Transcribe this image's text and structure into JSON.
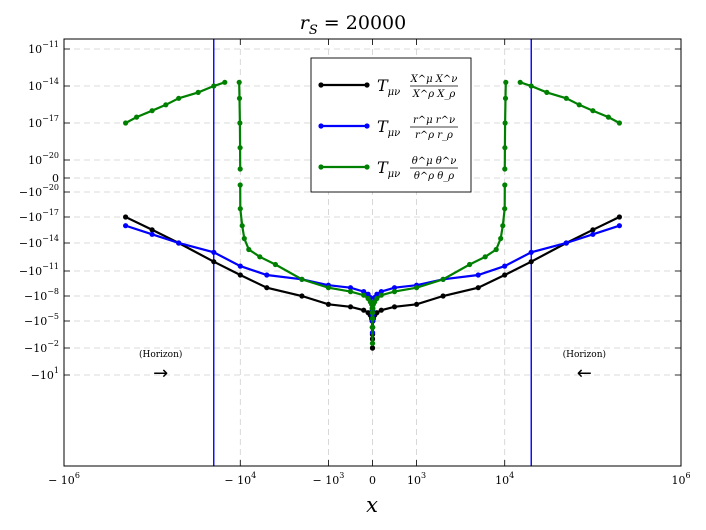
{
  "chart_data": {
    "type": "line",
    "title": "r_S = 20000",
    "title_parts": {
      "main": "r",
      "sub": "S",
      "rest": " = 20000"
    },
    "xlabel": "x",
    "ylabel": "",
    "x_scale": "symlog",
    "y_scale": "symlog",
    "xlim": [
      -1000000,
      1000000
    ],
    "x_ticks": [
      {
        "value": -1000000,
        "base": "− 10",
        "exp": "6"
      },
      {
        "value": -10000,
        "base": "− 10",
        "exp": "4"
      },
      {
        "value": -1000,
        "base": "− 10",
        "exp": "3"
      },
      {
        "value": 0,
        "base": "0",
        "exp": ""
      },
      {
        "value": 1000,
        "base": "10",
        "exp": "3"
      },
      {
        "value": 10000,
        "base": "10",
        "exp": "4"
      },
      {
        "value": 1000000,
        "base": "10",
        "exp": "6"
      }
    ],
    "y_ticks": [
      {
        "value": 1e-11,
        "base": "10",
        "exp": "−11"
      },
      {
        "value": 1e-14,
        "base": "10",
        "exp": "−14"
      },
      {
        "value": 1e-17,
        "base": "10",
        "exp": "−17"
      },
      {
        "value": 1e-20,
        "base": "10",
        "exp": "−20"
      },
      {
        "value": 0,
        "base": "0",
        "exp": ""
      },
      {
        "value": -1e-20,
        "base": "−10",
        "exp": "−20"
      },
      {
        "value": -1e-17,
        "base": "−10",
        "exp": "−17"
      },
      {
        "value": -1e-14,
        "base": "−10",
        "exp": "−14"
      },
      {
        "value": -1e-11,
        "base": "−10",
        "exp": "−11"
      },
      {
        "value": -1e-08,
        "base": "−10",
        "exp": "−8"
      },
      {
        "value": -1e-05,
        "base": "−10",
        "exp": "−5"
      },
      {
        "value": -0.01,
        "base": "−10",
        "exp": "−2"
      },
      {
        "value": -10,
        "base": "−10",
        "exp": "1"
      }
    ],
    "grid": true,
    "legend_position": "top-center",
    "vertical_lines": [
      {
        "x": -20000,
        "color": "#0000ff"
      },
      {
        "x": 20000,
        "color": "#0000ff"
      }
    ],
    "annotations": [
      {
        "text": "(Horizon)",
        "x": -80000,
        "y": -0.1,
        "arrow": "→"
      },
      {
        "text": "(Horizon)",
        "x": 80000,
        "y": -0.1,
        "arrow": "←"
      }
    ],
    "series": [
      {
        "color": "#000000",
        "legend_main": "T",
        "legend_sub": "μν",
        "legend_num": "X^μ X^ν",
        "legend_den": "X^ρ X_ρ",
        "segments": [
          {
            "x": [
              -200000,
              -100000,
              -50000,
              -20000,
              -10000,
              -5000,
              -2000,
              -1000,
              -500,
              -200,
              -100,
              -50,
              -20,
              -10,
              -5,
              -2,
              -1,
              0
            ],
            "y": [
              -1e-17,
              -3e-16,
              -1e-14,
              -1e-12,
              -3e-11,
              -1e-09,
              -1e-08,
              -1e-07,
              -2e-07,
              -5e-07,
              -1e-06,
              -2e-06,
              -5e-06,
              -1e-05,
              -5e-05,
              -0.0003,
              -0.001,
              -0.01
            ]
          },
          {
            "x": [
              0,
              1,
              2,
              5,
              10,
              20,
              50,
              100,
              200,
              500,
              1000,
              2000,
              5000,
              10000,
              20000,
              50000,
              100000,
              200000
            ],
            "y": [
              -0.01,
              -0.001,
              -0.0003,
              -5e-05,
              -1e-05,
              -5e-06,
              -2e-06,
              -1e-06,
              -5e-07,
              -2e-07,
              -1e-07,
              -1e-08,
              -1e-09,
              -3e-11,
              -1e-12,
              -1e-14,
              -3e-16,
              -1e-17
            ]
          }
        ]
      },
      {
        "color": "#0000ff",
        "legend_main": "T",
        "legend_sub": "μν",
        "legend_num": "r^μ r^ν",
        "legend_den": "r^ρ r_ρ",
        "segments": [
          {
            "x": [
              -200000,
              -100000,
              -50000,
              -20000,
              -10000,
              -5000,
              -2000,
              -1000,
              -500,
              -200,
              -100,
              -50,
              -20,
              -10,
              -5,
              -2,
              -1,
              0
            ],
            "y": [
              -1e-16,
              -1e-15,
              -1e-14,
              -1e-13,
              -3e-12,
              -3e-11,
              -1e-10,
              -5e-10,
              -1e-09,
              -3e-09,
              -6e-09,
              -1.5e-08,
              -5e-08,
              -1e-07,
              -5e-07,
              -2e-06,
              -1e-05,
              -0.0002
            ]
          },
          {
            "x": [
              0,
              1,
              2,
              5,
              10,
              20,
              50,
              100,
              200,
              500,
              1000,
              2000,
              5000,
              10000,
              20000,
              50000,
              100000,
              200000
            ],
            "y": [
              -0.0002,
              -1e-05,
              -2e-06,
              -5e-07,
              -1e-07,
              -5e-08,
              -1.5e-08,
              -6e-09,
              -3e-09,
              -1e-09,
              -5e-10,
              -1e-10,
              -3e-11,
              -3e-12,
              -1e-13,
              -1e-14,
              -1e-15,
              -1e-16
            ]
          }
        ]
      },
      {
        "color": "#008000",
        "legend_main": "T",
        "legend_sub": "μν",
        "legend_num": "θ^μ θ^ν",
        "legend_den": "θ^ρ θ_ρ",
        "segments": [
          {
            "x": [
              -200000,
              -150000,
              -100000,
              -70000,
              -50000,
              -30000,
              -20000,
              -15000
            ],
            "y": [
              1e-17,
              3e-17,
              1e-16,
              3e-16,
              1e-15,
              3e-15,
              1e-14,
              2e-14
            ]
          },
          {
            "x": [
              -10300,
              -10200,
              -10100,
              -10050,
              -10020
            ],
            "y": [
              2e-14,
              1e-15,
              1e-17,
              1e-19,
              1e-21
            ]
          },
          {
            "x": [
              -10020,
              -10000,
              -9500,
              -9000,
              -8000,
              -6000,
              -4000,
              -2000,
              -1000,
              -500,
              -200,
              -100,
              -50,
              -20,
              -10,
              -5,
              -2,
              -1,
              0
            ],
            "y": [
              -1e-21,
              -1e-18,
              -1e-16,
              -3e-15,
              -5e-14,
              -3e-13,
              -2e-12,
              -1e-10,
              -1e-09,
              -3e-09,
              -8e-09,
              -2e-08,
              -5e-08,
              -1e-07,
              -3e-07,
              -1e-06,
              -5e-06,
              -5e-05,
              -0.003
            ]
          },
          {
            "x": [
              0,
              1,
              2,
              5,
              10,
              20,
              50,
              100,
              200,
              500,
              1000,
              2000,
              4000,
              6000,
              8000,
              9000,
              9500,
              10000,
              10020
            ],
            "y": [
              -0.003,
              -5e-05,
              -5e-06,
              -1e-06,
              -3e-07,
              -1e-07,
              -5e-08,
              -2e-08,
              -8e-09,
              -3e-09,
              -1e-09,
              -1e-10,
              -2e-12,
              -3e-13,
              -5e-14,
              -3e-15,
              -1e-16,
              -1e-18,
              -1e-21
            ]
          },
          {
            "x": [
              10020,
              10050,
              10100,
              10200,
              10300
            ],
            "y": [
              1e-21,
              1e-19,
              1e-17,
              1e-15,
              2e-14
            ]
          },
          {
            "x": [
              15000,
              20000,
              30000,
              50000,
              70000,
              100000,
              150000,
              200000
            ],
            "y": [
              2e-14,
              1e-14,
              3e-15,
              1e-15,
              3e-16,
              1e-16,
              3e-17,
              1e-17
            ]
          }
        ]
      }
    ]
  }
}
